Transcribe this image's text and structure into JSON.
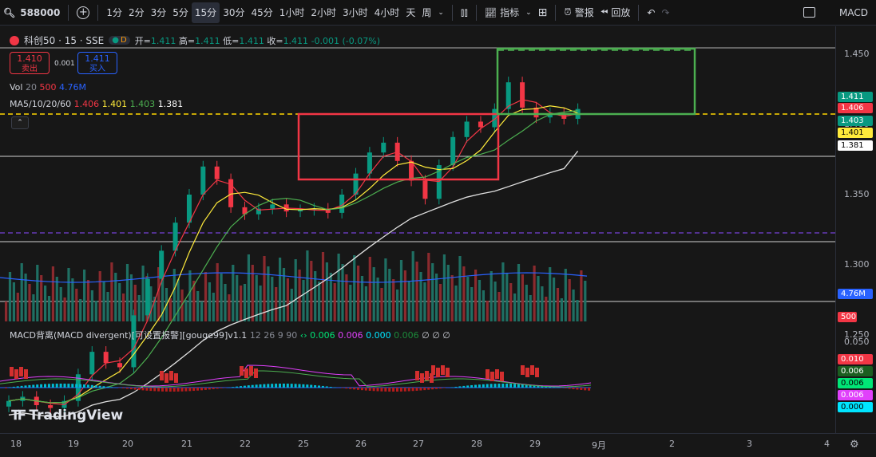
{
  "toolbar": {
    "symbol": "588000",
    "intervals": [
      "1分",
      "2分",
      "3分",
      "5分",
      "15分",
      "30分",
      "45分",
      "1小时",
      "2小时",
      "3小时",
      "4小时",
      "天",
      "周"
    ],
    "active_interval": "15分",
    "indicators_label": "指标",
    "alert_label": "警报",
    "replay_label": "回放",
    "indicator_name": "MACD"
  },
  "legend": {
    "name": "科创50 · 15 · SSE",
    "mode": "D",
    "open_label": "开=",
    "open": "1.411",
    "high_label": "高=",
    "high": "1.411",
    "low_label": "低=",
    "low": "1.411",
    "close_label": "收=",
    "close": "1.411",
    "change": "-0.001 (-0.07%)",
    "sell_price": "1.410",
    "sell_label": "卖出",
    "spread": "0.001",
    "buy_price": "1.411",
    "buy_label": "买入",
    "vol_label": "Vol",
    "vol_p1": "20",
    "vol_p2": "500",
    "vol_value": "4.76M",
    "ma_label": "MA5/10/20/60",
    "ma5": "1.406",
    "ma10": "1.401",
    "ma20": "1.403",
    "ma60": "1.381",
    "macd_title": "MACD背离(MACD divergent)[可设置报警][gouge99]v1.1",
    "macd_params": "12 26 9 90",
    "macd_v1": "0.006",
    "macd_v2": "0.006",
    "macd_v3": "0.000",
    "macd_v4": "0.006",
    "macd_tail": "∅ ∅ ∅"
  },
  "price_axis": {
    "ticks": [
      "1.450",
      "1.400",
      "1.350",
      "1.300",
      "1.250"
    ],
    "badges": [
      {
        "text": "1.411",
        "color": "#089981"
      },
      {
        "text": "1.406",
        "color": "#f23645"
      },
      {
        "text": "1.403",
        "color": "#089981"
      },
      {
        "text": "1.401",
        "color": "#ffeb3b"
      },
      {
        "text": "1.381",
        "color": "#ffffff"
      }
    ],
    "vol_badge": "4.76M",
    "vol_ma_badge": "500",
    "macd_ticks": [
      "0.050",
      "0.000"
    ],
    "macd_badges": [
      {
        "text": "0.010",
        "color": "#f23645"
      },
      {
        "text": "0.006",
        "color": "#1b5e20"
      },
      {
        "text": "0.006",
        "color": "#00e676"
      },
      {
        "text": "0.006",
        "color": "#e040fb"
      },
      {
        "text": "0.000",
        "color": "#00e5ff"
      }
    ]
  },
  "time_axis": [
    "18",
    "19",
    "20",
    "21",
    "22",
    "25",
    "26",
    "27",
    "28",
    "29",
    "9月",
    "2",
    "3",
    "4"
  ],
  "branding": "TradingView",
  "chart_data": {
    "type": "candlestick",
    "series": [
      {
        "name": "科创50",
        "close": [
          1.203,
          1.206,
          1.2,
          1.198,
          1.203,
          1.222,
          1.238,
          1.23,
          1.227,
          1.264,
          1.29,
          1.31,
          1.33,
          1.35,
          1.37,
          1.361,
          1.341,
          1.336,
          1.34,
          1.343,
          1.338,
          1.339,
          1.34,
          1.337,
          1.35,
          1.365,
          1.38,
          1.387,
          1.374,
          1.36,
          1.347,
          1.371,
          1.391,
          1.402,
          1.398,
          1.411,
          1.43,
          1.412,
          1.405,
          1.408,
          1.404,
          1.411
        ]
      }
    ],
    "ma60_last": 1.381,
    "ylim": [
      1.225,
      1.465
    ]
  }
}
